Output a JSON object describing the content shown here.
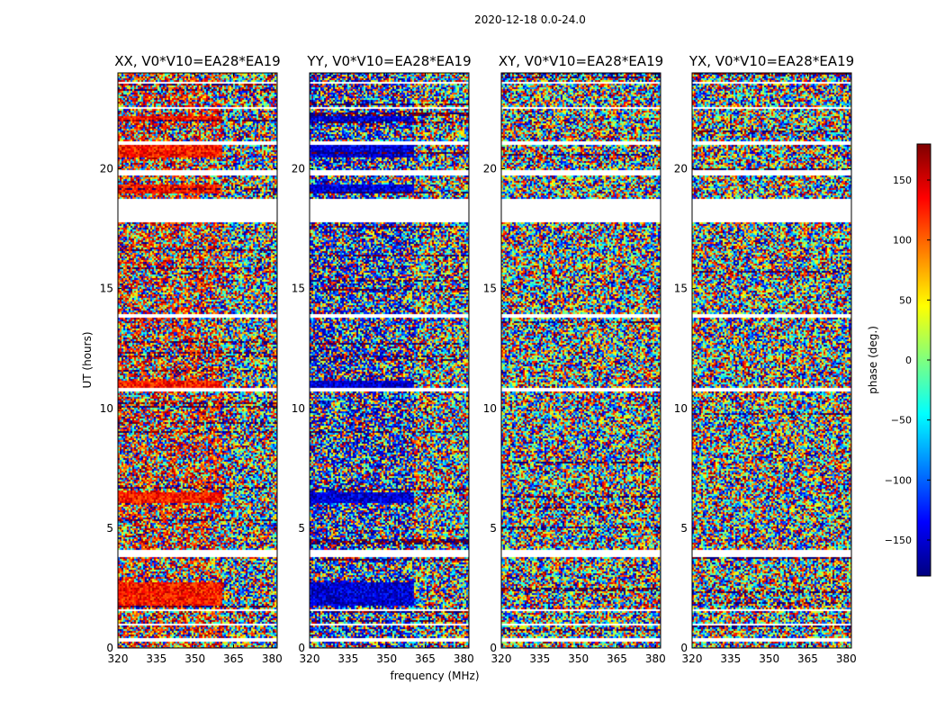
{
  "figure": {
    "suptitle": "2020-12-18 0.0-24.0",
    "xlabel": "frequency (MHz)",
    "ylabel": "UT (hours)"
  },
  "chart_data": {
    "type": "heatmap",
    "x_range": [
      320,
      382
    ],
    "y_range": [
      0,
      24
    ],
    "x_ticks": [
      320,
      335,
      350,
      365,
      380
    ],
    "x_tick_labels": [
      "320",
      "335",
      "350",
      "365",
      "380"
    ],
    "y_ticks": [
      0,
      5,
      10,
      15,
      20
    ],
    "y_tick_labels": [
      "0",
      "5",
      "10",
      "15",
      "20"
    ],
    "colormap": "jet",
    "color_range": [
      -180,
      180
    ],
    "panels": [
      {
        "title": "XX, V0*V10=EA28*EA19",
        "bias": 130,
        "band_edge_mhz": 360
      },
      {
        "title": "YY, V0*V10=EA28*EA19",
        "bias": -150,
        "band_edge_mhz": 360
      },
      {
        "title": "XY, V0*V10=EA28*EA19",
        "bias": null,
        "band_edge_mhz": null
      },
      {
        "title": "YX, V0*V10=EA28*EA19",
        "bias": null,
        "band_edge_mhz": null
      }
    ],
    "flagged_ut_hours": [
      [
        0.3,
        0.42
      ],
      [
        0.95,
        1.05
      ],
      [
        1.55,
        1.62
      ],
      [
        3.85,
        4.15
      ],
      [
        7.55,
        7.6
      ],
      [
        10.75,
        10.9
      ],
      [
        13.85,
        13.95
      ],
      [
        17.8,
        18.75
      ],
      [
        19.75,
        19.95
      ],
      [
        21.0,
        21.15
      ],
      [
        22.5,
        22.6
      ],
      [
        23.55,
        23.65
      ]
    ],
    "coherent_ut_ranges": [
      [
        1.8,
        2.8
      ],
      [
        6.1,
        6.5
      ],
      [
        10.9,
        11.2
      ],
      [
        19.0,
        19.4
      ],
      [
        20.5,
        21.0
      ],
      [
        22.0,
        22.2
      ]
    ],
    "colorbar": {
      "label": "phase (deg.)",
      "ticks": [
        150,
        100,
        50,
        0,
        -50,
        -100,
        -150
      ],
      "tick_labels": [
        "150",
        "100",
        "50",
        "0",
        "−50",
        "−100",
        "−150"
      ]
    }
  }
}
